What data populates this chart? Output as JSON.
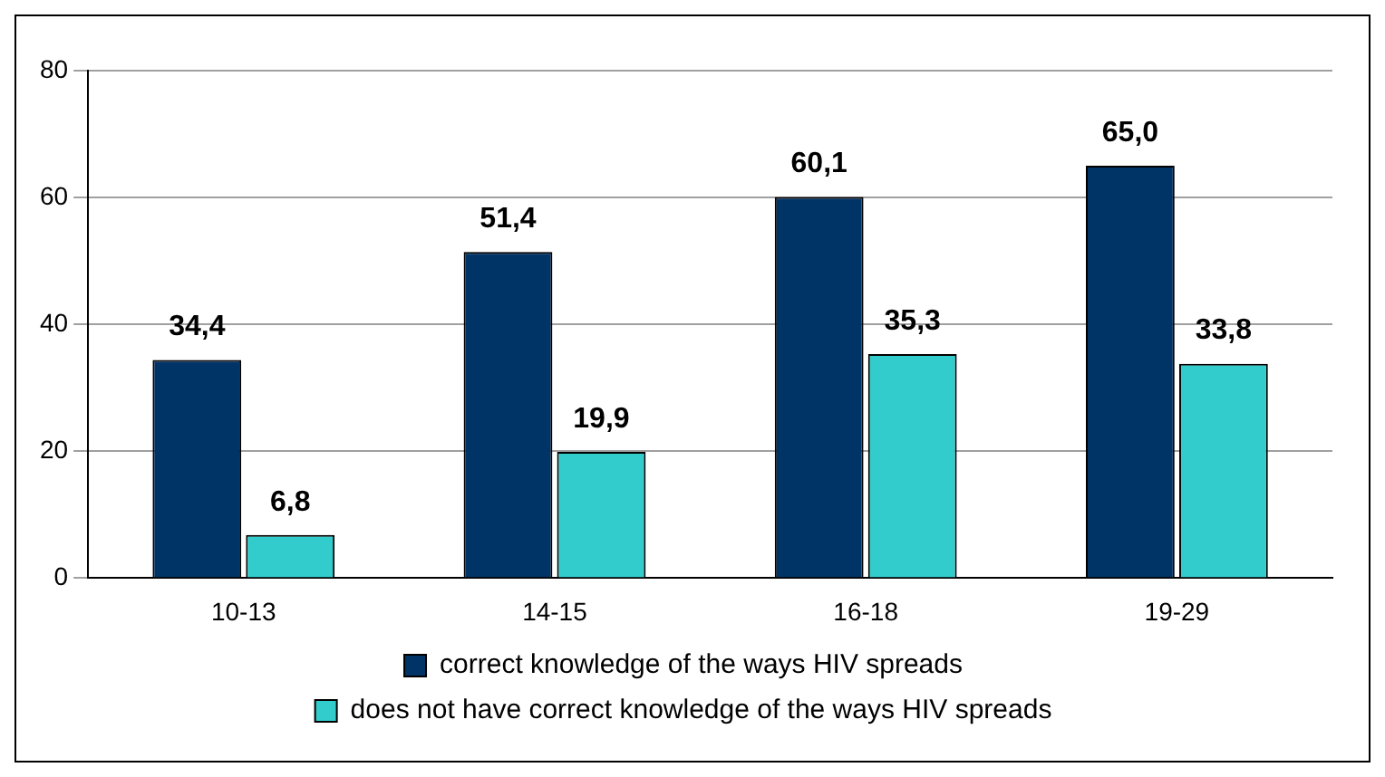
{
  "chart_data": {
    "type": "bar",
    "categories": [
      "10-13",
      "14-15",
      "16-18",
      "19-29"
    ],
    "series": [
      {
        "name": "correct knowledge of the ways HIV spreads",
        "color": "#003366",
        "values": [
          34.4,
          51.4,
          60.1,
          65.0
        ],
        "value_labels": [
          "34,4",
          "51,4",
          "60,1",
          "65,0"
        ]
      },
      {
        "name": "does not have correct knowledge of the ways HIV spreads",
        "color": "#33cccc",
        "values": [
          6.8,
          19.9,
          35.3,
          33.8
        ],
        "value_labels": [
          "6,8",
          "19,9",
          "35,3",
          "33,8"
        ]
      }
    ],
    "ylim": [
      0,
      80
    ],
    "yticks": [
      0,
      20,
      40,
      60,
      80
    ],
    "grid": "y",
    "legend": "bottom"
  }
}
